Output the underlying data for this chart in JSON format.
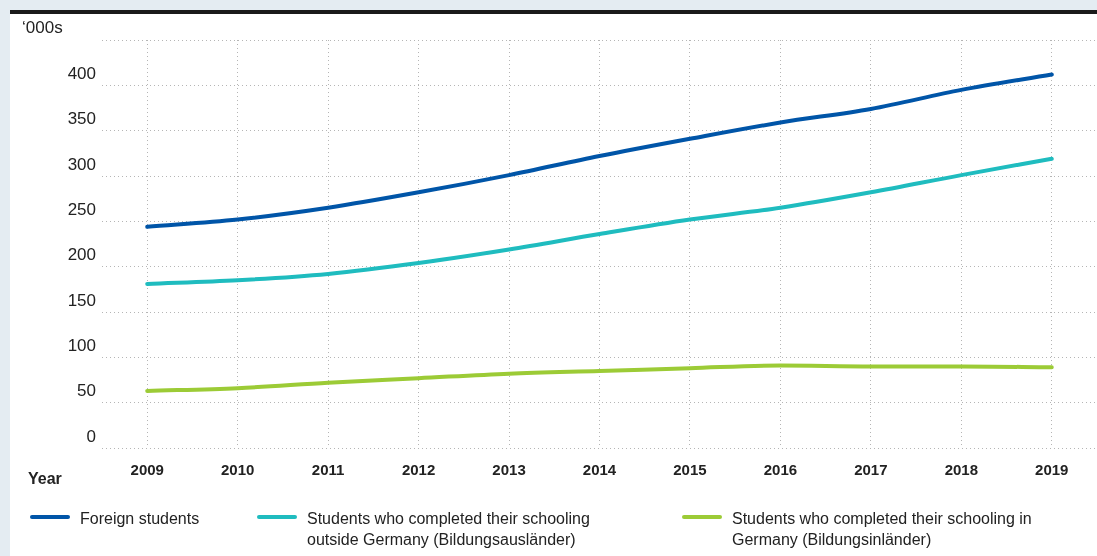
{
  "chart_data": {
    "type": "line",
    "ylabel": "‘000s",
    "xlabel": "Year",
    "categories": [
      "2009",
      "2010",
      "2011",
      "2012",
      "2013",
      "2014",
      "2015",
      "2016",
      "2017",
      "2018",
      "2019"
    ],
    "series": [
      {
        "name": "Foreign students",
        "color": "#0055a8",
        "values": [
          244,
          252,
          265,
          282,
          301,
          322,
          341,
          359,
          374,
          395,
          412
        ]
      },
      {
        "name": "Students who completed their schooling outside Germany (Bildungsausländer)",
        "color": "#1fbcbf",
        "values": [
          181,
          185,
          192,
          204,
          219,
          236,
          252,
          265,
          282,
          301,
          319
        ]
      },
      {
        "name": "Students who completed their schooling in Germany (Bildungsinländer)",
        "color": "#9ccb36",
        "values": [
          63,
          66,
          72,
          77,
          82,
          85,
          88,
          91,
          90,
          90,
          89
        ]
      }
    ],
    "ylim": [
      0,
      450
    ],
    "yticks": [
      0,
      50,
      100,
      150,
      200,
      250,
      300,
      350,
      400,
      {
        "value": 450,
        "label": null
      }
    ],
    "grid": true,
    "legend": "bottom",
    "marker": "none",
    "line_style": "solid"
  }
}
